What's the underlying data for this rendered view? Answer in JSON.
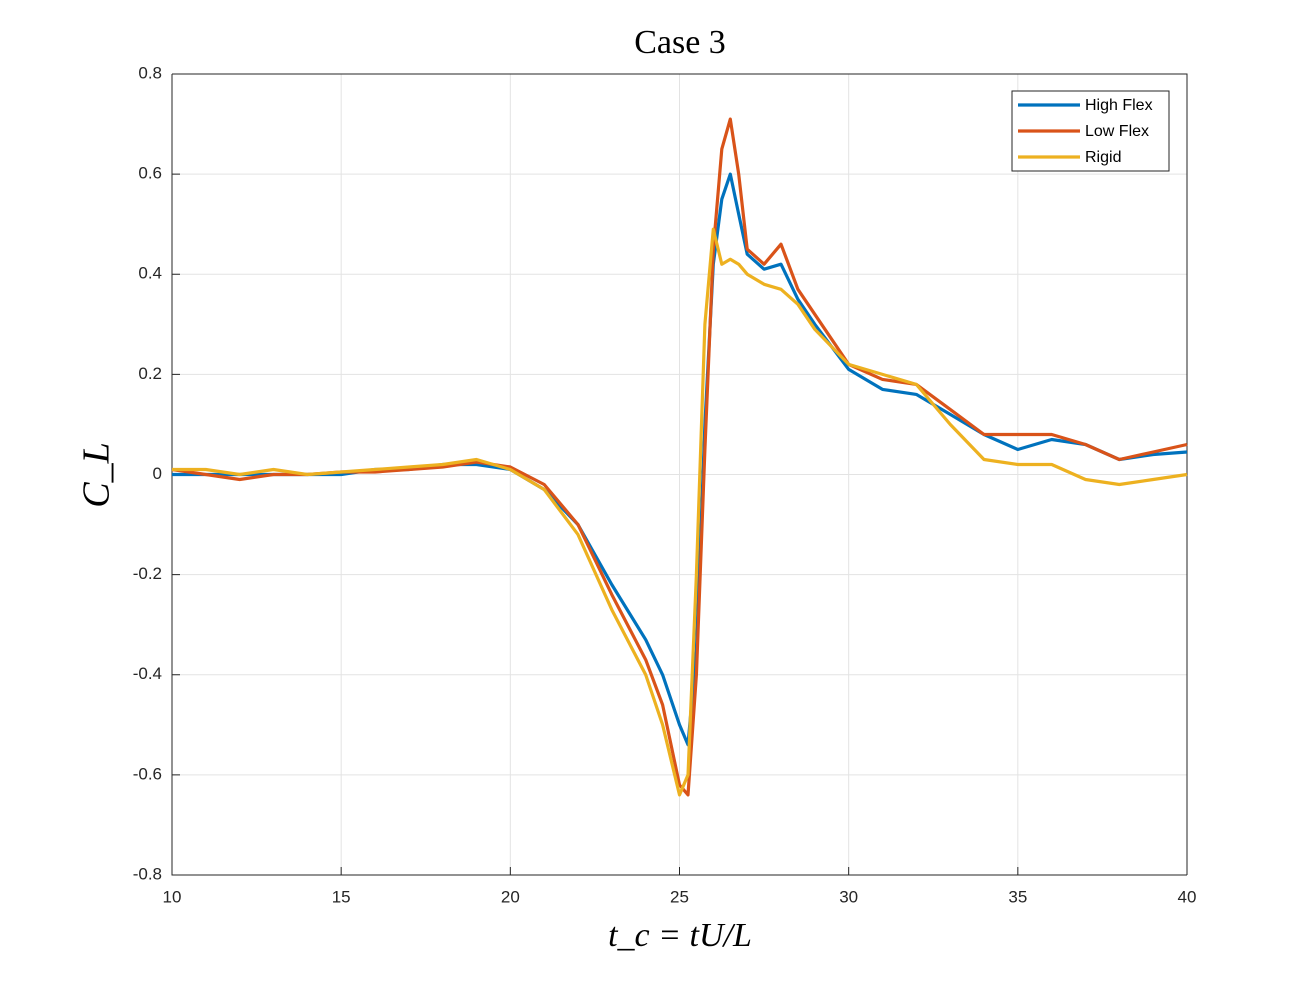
{
  "chart_data": {
    "type": "line",
    "title": "Case 3",
    "x_label": "t_c = tU/L",
    "y_label": "C_L",
    "x": [
      10,
      11,
      12,
      13,
      14,
      15,
      16,
      17,
      18,
      19,
      20,
      21,
      22,
      23,
      24,
      24.5,
      25,
      25.25,
      25.5,
      25.75,
      26,
      26.25,
      26.5,
      26.75,
      27,
      27.5,
      28,
      28.5,
      29,
      30,
      31,
      32,
      33,
      34,
      35,
      36,
      37,
      38,
      39,
      40
    ],
    "series": [
      {
        "name": "High Flex",
        "color": "#0072BD",
        "values": [
          0,
          0,
          0,
          0,
          0,
          0,
          0.01,
          0.01,
          0.02,
          0.02,
          0.01,
          -0.03,
          -0.1,
          -0.22,
          -0.33,
          -0.4,
          -0.5,
          -0.54,
          -0.35,
          0.1,
          0.42,
          0.55,
          0.6,
          0.52,
          0.44,
          0.41,
          0.42,
          0.35,
          0.3,
          0.21,
          0.17,
          0.16,
          0.12,
          0.08,
          0.05,
          0.07,
          0.06,
          0.03,
          0.04,
          0.045
        ]
      },
      {
        "name": "Low Flex",
        "color": "#D95319",
        "values": [
          0.01,
          0,
          -0.01,
          0,
          0,
          0.005,
          0.005,
          0.01,
          0.015,
          0.025,
          0.015,
          -0.02,
          -0.1,
          -0.24,
          -0.37,
          -0.46,
          -0.62,
          -0.64,
          -0.4,
          0.05,
          0.45,
          0.65,
          0.71,
          0.6,
          0.45,
          0.42,
          0.46,
          0.37,
          0.32,
          0.22,
          0.19,
          0.18,
          0.13,
          0.08,
          0.08,
          0.08,
          0.06,
          0.03,
          0.045,
          0.06
        ]
      },
      {
        "name": "Rigid",
        "color": "#EDB120",
        "values": [
          0.01,
          0.01,
          0,
          0.01,
          0,
          0.005,
          0.01,
          0.015,
          0.02,
          0.03,
          0.01,
          -0.03,
          -0.12,
          -0.27,
          -0.4,
          -0.5,
          -0.64,
          -0.6,
          -0.2,
          0.3,
          0.49,
          0.42,
          0.43,
          0.42,
          0.4,
          0.38,
          0.37,
          0.34,
          0.29,
          0.22,
          0.2,
          0.18,
          0.1,
          0.03,
          0.02,
          0.02,
          -0.01,
          -0.02,
          -0.01,
          0
        ]
      }
    ],
    "xlim": [
      10,
      40
    ],
    "xticks": [
      10,
      15,
      20,
      25,
      30,
      35,
      40
    ],
    "ylim": [
      -0.8,
      0.8
    ],
    "yticks": [
      -0.8,
      -0.6,
      -0.4,
      -0.2,
      0,
      0.2,
      0.4,
      0.6,
      0.8
    ],
    "grid": true,
    "legend": "top-right"
  }
}
